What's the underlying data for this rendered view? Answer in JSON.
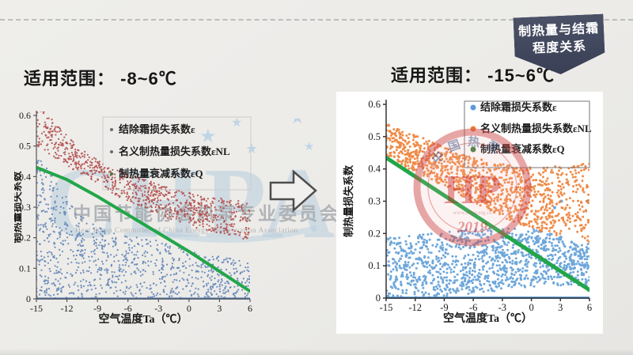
{
  "page": {
    "background": "#edecea",
    "badge": {
      "lines": [
        "制热量与结霜",
        "程度关系"
      ],
      "bg_color": "#3e4458",
      "text_color": "#ffffff"
    },
    "left_panel": {
      "range_title": "适用范围： -8~6℃"
    },
    "right_panel": {
      "range_title": "适用范围： -15~6℃"
    },
    "icons": {
      "transform_arrow": "right-arrow"
    }
  },
  "watermarks": {
    "chpa": {
      "big_text": "CHPA",
      "cn_text": "中国节能协会热泵专业委员会",
      "en_text": "Heat Pump Committee of China Energy Conservation Association",
      "star_icon": "star",
      "color": "#b3cbdd",
      "text_color": "#a6aaaf"
    },
    "stamp": {
      "ring_text": "中国热泵",
      "center_text": "HP",
      "year_text": "2019",
      "url_text": "www.chpa.org.cn",
      "color": "#d05050"
    }
  },
  "chart_data": [
    {
      "type": "scatter",
      "title": "",
      "xlabel": "空气温度Ta（℃）",
      "ylabel": "制热量损失系数",
      "xlim": [
        -15,
        6
      ],
      "ylim": [
        0,
        0.6
      ],
      "xticks": [
        -15,
        -12,
        -9,
        -6,
        -3,
        0,
        3,
        6
      ],
      "yticks": [
        "0",
        "0.1",
        "0.2",
        "0.3",
        "0.4",
        "0.5",
        "0.6"
      ],
      "grid": false,
      "legend_position": "top-right",
      "legend": [
        {
          "label": "结除霜损失系数ε",
          "marker_color": "#6b6b6b"
        },
        {
          "label": "名义制热量损失系数εNL",
          "marker_color": "#6b6b6b"
        },
        {
          "label": "制热量衰减系数εQ",
          "marker_color": "#4a7d4a"
        }
      ],
      "series": [
        {
          "name": "结除霜损失系数ε",
          "kind": "scatter-band",
          "color": "#5b7fb5",
          "count": 950,
          "seed": 11,
          "left_bias": 1.35,
          "x_anchors": [
            -15,
            -13,
            -11,
            -9,
            -7,
            -5,
            -3,
            -1,
            1,
            3,
            6
          ],
          "upper": [
            0.48,
            0.38,
            0.29,
            0.235,
            0.21,
            0.205,
            0.19,
            0.17,
            0.15,
            0.14,
            0.12
          ],
          "lower": [
            0,
            0,
            0,
            0,
            0,
            0,
            0,
            0,
            0,
            0,
            0
          ],
          "outliers": []
        },
        {
          "name": "名义制热量损失系数εNL",
          "kind": "scatter-band",
          "color": "#b04543",
          "count": 850,
          "seed": 7,
          "left_bias": 1.0,
          "x_anchors": [
            -15,
            -13,
            -11,
            -9,
            -7,
            -5,
            -3,
            -1,
            1,
            3,
            6
          ],
          "upper": [
            0.64,
            0.57,
            0.5,
            0.455,
            0.42,
            0.4,
            0.375,
            0.355,
            0.34,
            0.33,
            0.315
          ],
          "lower": [
            0.5,
            0.455,
            0.415,
            0.375,
            0.335,
            0.305,
            0.275,
            0.25,
            0.23,
            0.215,
            0.19
          ],
          "outliers": []
        },
        {
          "name": "制热量衰减系数εQ",
          "kind": "line",
          "color": "#22a648",
          "width": 4,
          "points": [
            [
              -15,
              0.43
            ],
            [
              -12,
              0.39
            ],
            [
              -9,
              0.335
            ],
            [
              -6,
              0.275
            ],
            [
              -3,
              0.215
            ],
            [
              0,
              0.155
            ],
            [
              3,
              0.09
            ],
            [
              6,
              0.025
            ]
          ]
        },
        {
          "name": "zero-baseline",
          "kind": "line",
          "color": "#5b7fb5",
          "width": 2.5,
          "points": [
            [
              -15,
              0.001
            ],
            [
              6,
              0.001
            ]
          ]
        }
      ]
    },
    {
      "type": "scatter",
      "title": "",
      "xlabel": "空气温度Ta（℃）",
      "ylabel": "制热量损失系数",
      "xlim": [
        -15,
        6
      ],
      "ylim": [
        0,
        0.6
      ],
      "xticks": [
        -15,
        -12,
        -9,
        -6,
        -3,
        0,
        3,
        6
      ],
      "yticks": [
        "0",
        "0.1",
        "0.2",
        "0.3",
        "0.4",
        "0.5",
        "0.6"
      ],
      "grid": false,
      "legend_position": "top-right",
      "legend": [
        {
          "label": "结除霜损失系数ε",
          "marker_color": "#5b9bd5"
        },
        {
          "label": "名义制热量损失系数εNL",
          "marker_color": "#ed7d31"
        },
        {
          "label": "制热量衰减系数εQ",
          "marker_color": "#3f7d3f"
        }
      ],
      "series": [
        {
          "name": "结除霜损失系数ε",
          "kind": "scatter-band",
          "color": "#5b9bd5",
          "count": 1150,
          "seed": 21,
          "left_bias": 1.0,
          "x_anchors": [
            -15,
            -12,
            -9,
            -6,
            -4,
            -2,
            0,
            2,
            4,
            6
          ],
          "upper": [
            0.185,
            0.195,
            0.205,
            0.215,
            0.22,
            0.22,
            0.215,
            0.2,
            0.185,
            0.17
          ],
          "lower": [
            0,
            0,
            0.005,
            0.015,
            0.02,
            0.03,
            0.035,
            0.04,
            0.04,
            0.035
          ],
          "outliers": [
            [
              3.1,
              0.3
            ],
            [
              5.8,
              0.3
            ],
            [
              2.4,
              0.28
            ]
          ]
        },
        {
          "name": "名义制热量损失系数εNL",
          "kind": "scatter-band",
          "color": "#ed7d31",
          "count": 1100,
          "seed": 5,
          "left_bias": 1.0,
          "x_anchors": [
            -15,
            -12,
            -9,
            -6,
            -3,
            0,
            3,
            6
          ],
          "upper": [
            0.545,
            0.505,
            0.47,
            0.435,
            0.415,
            0.405,
            0.41,
            0.42
          ],
          "lower": [
            0.44,
            0.39,
            0.345,
            0.295,
            0.25,
            0.215,
            0.19,
            0.17
          ],
          "outliers": []
        },
        {
          "name": "制热量衰减系数εQ",
          "kind": "line",
          "color": "#22a648",
          "width": 5,
          "points": [
            [
              -15,
              0.435
            ],
            [
              6,
              0.025
            ]
          ]
        },
        {
          "name": "zero-baseline",
          "kind": "line",
          "color": "#5b9bd5",
          "width": 3,
          "points": [
            [
              -15,
              0.001
            ],
            [
              6,
              0.001
            ]
          ]
        }
      ]
    }
  ]
}
